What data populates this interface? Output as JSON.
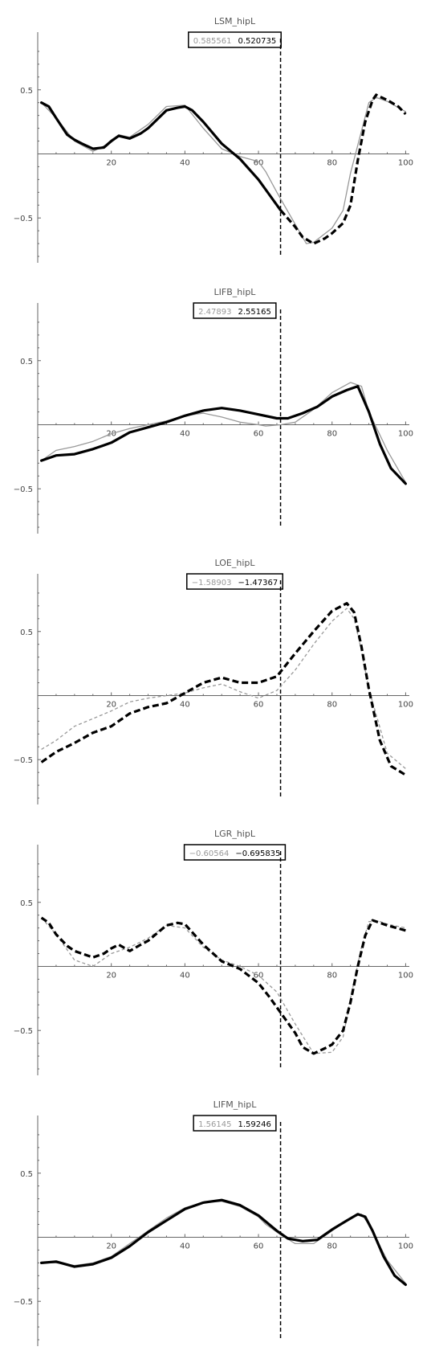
{
  "colors": {
    "reference": "#999999",
    "model": "#000000",
    "axis": "#666666",
    "marker": "#000000"
  },
  "chart_data": [
    {
      "type": "line",
      "title": "LSM_hipL",
      "legend": [
        "0.585561",
        "0.520735"
      ],
      "xlim": [
        0,
        101
      ],
      "ylim": [
        -0.85,
        0.95
      ],
      "xticks": [
        20,
        40,
        60,
        80,
        100
      ],
      "yticks": [
        0.5,
        -0.5
      ],
      "vline_x": 66,
      "grid": false,
      "series": [
        {
          "role": "reference",
          "x": [
            1,
            5,
            10,
            15,
            20,
            22,
            25,
            30,
            35,
            40,
            45,
            50,
            55,
            60,
            62,
            65,
            68,
            70,
            73,
            75,
            80,
            83,
            85,
            90,
            92,
            95,
            100
          ],
          "y": [
            0.4,
            0.28,
            0.1,
            0.02,
            0.09,
            0.15,
            0.13,
            0.23,
            0.37,
            0.38,
            0.2,
            0.04,
            -0.02,
            -0.06,
            -0.14,
            -0.3,
            -0.45,
            -0.55,
            -0.7,
            -0.69,
            -0.58,
            -0.44,
            -0.15,
            0.4,
            0.44,
            0.41,
            0.33
          ]
        },
        {
          "role": "model",
          "x": [
            1,
            3,
            5,
            8,
            10,
            12,
            15,
            18,
            20,
            22,
            25,
            28,
            30,
            35,
            38,
            40,
            42,
            45,
            50,
            55,
            60,
            63,
            66,
            70,
            72,
            75,
            78,
            80,
            83,
            85,
            87,
            89,
            91,
            92,
            95,
            98,
            100
          ],
          "y": [
            0.4,
            0.37,
            0.28,
            0.15,
            0.11,
            0.08,
            0.04,
            0.05,
            0.1,
            0.14,
            0.12,
            0.16,
            0.2,
            0.34,
            0.36,
            0.37,
            0.34,
            0.25,
            0.08,
            -0.04,
            -0.2,
            -0.32,
            -0.44,
            -0.57,
            -0.65,
            -0.7,
            -0.66,
            -0.62,
            -0.54,
            -0.4,
            -0.05,
            0.25,
            0.42,
            0.46,
            0.42,
            0.37,
            0.31
          ],
          "dashed_from_x": 66
        }
      ]
    },
    {
      "type": "line",
      "title": "LIFB_hipL",
      "legend": [
        "2.47893",
        "2.55165"
      ],
      "xlim": [
        0,
        101
      ],
      "ylim": [
        -0.85,
        0.95
      ],
      "xticks": [
        20,
        40,
        60,
        80,
        100
      ],
      "yticks": [
        0.5,
        -0.5
      ],
      "vline_x": 66,
      "grid": false,
      "series": [
        {
          "role": "reference",
          "x": [
            1,
            5,
            10,
            15,
            20,
            25,
            30,
            35,
            40,
            45,
            50,
            55,
            60,
            62,
            66,
            70,
            75,
            80,
            85,
            88,
            90,
            95,
            100
          ],
          "y": [
            -0.28,
            -0.2,
            -0.17,
            -0.13,
            -0.07,
            -0.03,
            0.0,
            0.03,
            0.07,
            0.09,
            0.06,
            0.02,
            0.0,
            -0.01,
            0.0,
            0.02,
            0.12,
            0.25,
            0.33,
            0.3,
            0.1,
            -0.2,
            -0.45
          ]
        },
        {
          "role": "model",
          "x": [
            1,
            5,
            10,
            15,
            20,
            25,
            30,
            35,
            40,
            45,
            50,
            55,
            60,
            65,
            68,
            72,
            76,
            80,
            84,
            87,
            90,
            93,
            96,
            100
          ],
          "y": [
            -0.28,
            -0.24,
            -0.23,
            -0.19,
            -0.14,
            -0.06,
            -0.02,
            0.02,
            0.07,
            0.11,
            0.13,
            0.11,
            0.08,
            0.05,
            0.05,
            0.09,
            0.14,
            0.22,
            0.27,
            0.3,
            0.1,
            -0.15,
            -0.34,
            -0.46
          ]
        }
      ]
    },
    {
      "type": "line",
      "title": "LOE_hipL",
      "legend": [
        "−1.58903",
        "−1.47367"
      ],
      "xlim": [
        0,
        101
      ],
      "ylim": [
        -0.85,
        0.95
      ],
      "xticks": [
        20,
        40,
        60,
        80,
        100
      ],
      "yticks": [
        0.5,
        -0.5
      ],
      "vline_x": 66,
      "grid": false,
      "series": [
        {
          "role": "reference",
          "x": [
            1,
            5,
            10,
            15,
            20,
            25,
            30,
            35,
            40,
            45,
            50,
            55,
            60,
            65,
            70,
            75,
            80,
            84,
            86,
            88,
            90,
            95,
            100
          ],
          "y": [
            -0.42,
            -0.35,
            -0.24,
            -0.18,
            -0.12,
            -0.05,
            -0.02,
            0.0,
            0.02,
            0.06,
            0.09,
            0.03,
            -0.02,
            0.04,
            0.2,
            0.4,
            0.58,
            0.68,
            0.6,
            0.35,
            0.05,
            -0.45,
            -0.57
          ]
        },
        {
          "role": "model",
          "x": [
            1,
            5,
            10,
            15,
            20,
            25,
            30,
            35,
            40,
            45,
            50,
            55,
            60,
            65,
            70,
            75,
            80,
            84,
            86,
            88,
            90,
            93,
            96,
            100
          ],
          "y": [
            -0.52,
            -0.44,
            -0.37,
            -0.29,
            -0.24,
            -0.14,
            -0.09,
            -0.06,
            0.02,
            0.1,
            0.14,
            0.1,
            0.1,
            0.15,
            0.33,
            0.5,
            0.66,
            0.72,
            0.65,
            0.38,
            0.05,
            -0.35,
            -0.55,
            -0.62
          ]
        }
      ]
    },
    {
      "type": "line",
      "title": "LGR_hipL",
      "legend": [
        "−0.60564",
        "−0.695835"
      ],
      "xlim": [
        0,
        101
      ],
      "ylim": [
        -0.85,
        0.95
      ],
      "xticks": [
        20,
        40,
        60,
        80,
        100
      ],
      "yticks": [
        0.5,
        -0.5
      ],
      "vline_x": 66,
      "grid": false,
      "series": [
        {
          "role": "reference",
          "x": [
            1,
            5,
            10,
            15,
            20,
            25,
            30,
            35,
            40,
            45,
            50,
            55,
            60,
            65,
            70,
            75,
            80,
            83,
            85,
            88,
            90,
            93,
            95,
            100
          ],
          "y": [
            0.38,
            0.25,
            0.05,
            0.0,
            0.1,
            0.15,
            0.22,
            0.32,
            0.3,
            0.15,
            0.05,
            0.0,
            -0.07,
            -0.2,
            -0.45,
            -0.68,
            -0.67,
            -0.55,
            -0.25,
            0.15,
            0.35,
            0.35,
            0.33,
            0.3
          ]
        },
        {
          "role": "model",
          "x": [
            1,
            3,
            5,
            8,
            10,
            15,
            18,
            20,
            22,
            25,
            28,
            30,
            35,
            38,
            40,
            45,
            50,
            55,
            60,
            63,
            66,
            70,
            72,
            75,
            78,
            80,
            83,
            85,
            87,
            89,
            91,
            95,
            100
          ],
          "y": [
            0.38,
            0.34,
            0.25,
            0.16,
            0.12,
            0.07,
            0.1,
            0.14,
            0.17,
            0.12,
            0.17,
            0.2,
            0.32,
            0.34,
            0.33,
            0.17,
            0.04,
            -0.02,
            -0.13,
            -0.24,
            -0.36,
            -0.52,
            -0.63,
            -0.68,
            -0.64,
            -0.61,
            -0.5,
            -0.28,
            0.0,
            0.24,
            0.36,
            0.32,
            0.28
          ]
        }
      ]
    },
    {
      "type": "line",
      "title": "LIFM_hipL",
      "legend": [
        "1.56145",
        "1.59246"
      ],
      "xlim": [
        0,
        101
      ],
      "ylim": [
        -0.85,
        0.95
      ],
      "xticks": [
        20,
        40,
        60,
        80,
        100
      ],
      "yticks": [
        0.5,
        -0.5
      ],
      "vline_x": 66,
      "grid": false,
      "series": [
        {
          "role": "reference",
          "x": [
            1,
            5,
            10,
            15,
            20,
            25,
            30,
            35,
            40,
            45,
            50,
            55,
            60,
            62,
            66,
            70,
            75,
            80,
            85,
            88,
            90,
            95,
            100
          ],
          "y": [
            -0.2,
            -0.2,
            -0.22,
            -0.2,
            -0.15,
            -0.05,
            0.05,
            0.15,
            0.23,
            0.27,
            0.28,
            0.24,
            0.16,
            0.1,
            0.02,
            -0.05,
            -0.05,
            0.05,
            0.15,
            0.18,
            0.1,
            -0.18,
            -0.36
          ]
        },
        {
          "role": "model",
          "x": [
            1,
            5,
            10,
            15,
            20,
            25,
            30,
            35,
            40,
            45,
            50,
            55,
            60,
            65,
            68,
            72,
            76,
            80,
            84,
            87,
            89,
            91,
            94,
            97,
            100
          ],
          "y": [
            -0.2,
            -0.19,
            -0.23,
            -0.21,
            -0.16,
            -0.07,
            0.04,
            0.13,
            0.22,
            0.27,
            0.29,
            0.25,
            0.17,
            0.05,
            -0.01,
            -0.03,
            -0.02,
            0.06,
            0.13,
            0.18,
            0.16,
            0.05,
            -0.15,
            -0.3,
            -0.37
          ]
        }
      ]
    }
  ]
}
